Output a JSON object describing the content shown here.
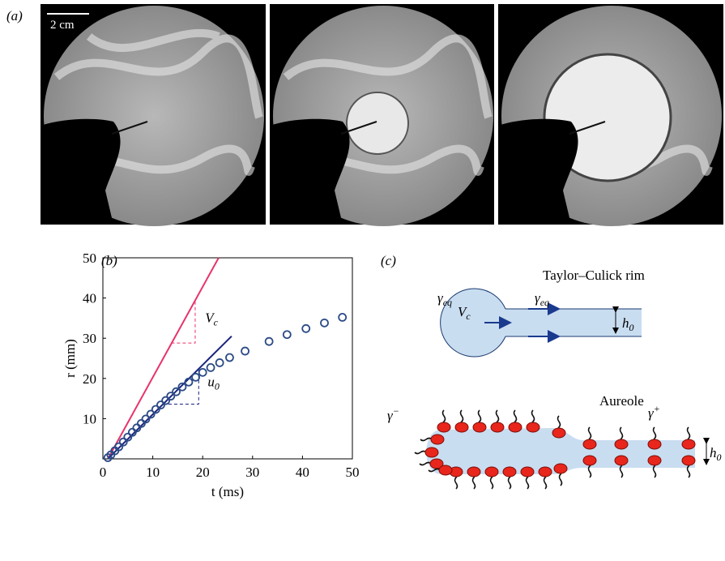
{
  "panel_labels": [
    "(a)",
    "(b)",
    "(c)"
  ],
  "scale_bar": "2 cm",
  "chart_data": {
    "type": "scatter",
    "xlabel": "t (ms)",
    "ylabel": "r (mm)",
    "xlim": [
      0,
      50
    ],
    "ylim": [
      0,
      50
    ],
    "xticks": [
      0,
      10,
      20,
      30,
      40,
      50
    ],
    "yticks": [
      10,
      20,
      30,
      40,
      50
    ],
    "series": [
      {
        "color": "#2b4a86",
        "x": [
          1,
          1.6,
          2.4,
          3.2,
          4.1,
          5,
          5.9,
          6.8,
          7.7,
          8.6,
          9.6,
          10.6,
          11.6,
          12.6,
          13.6,
          14.7,
          15.9,
          17.2,
          18.6,
          20,
          21.6,
          23.4,
          25.4,
          28.5,
          33.3,
          36.9,
          40.7,
          44.4,
          48
        ],
        "values": [
          0.3,
          1,
          2,
          3,
          4.2,
          5.4,
          6.6,
          7.7,
          8.8,
          9.9,
          11.1,
          12.3,
          13.4,
          14.5,
          15.6,
          16.7,
          17.9,
          19.1,
          20.3,
          21.5,
          22.7,
          23.9,
          25.2,
          26.8,
          29.2,
          30.9,
          32.4,
          33.8,
          35.2
        ]
      }
    ],
    "lines": [
      {
        "color": "#e8336b",
        "x": [
          1,
          23.2
        ],
        "y": [
          0,
          50
        ],
        "dash": false
      },
      {
        "color": "#1a237e",
        "x": [
          1,
          25.8
        ],
        "y": [
          0,
          30.5
        ],
        "dash": false
      },
      {
        "color": "#e8336b",
        "x": [
          13.7,
          18.5,
          18.5
        ],
        "y": [
          28.8,
          28.8,
          39.7
        ],
        "dash": true
      },
      {
        "color": "#1a237e",
        "x": [
          12,
          19.2,
          19.2
        ],
        "y": [
          13.6,
          13.6,
          22.6
        ],
        "dash": true
      }
    ],
    "annotations": [
      {
        "symbol": "V",
        "sub": "c",
        "x": 20.5,
        "y": 34
      },
      {
        "symbol": "u",
        "sub": "0",
        "x": 21,
        "y": 18
      }
    ]
  },
  "diagram": {
    "rim_title": "Taylor–Culick rim",
    "gamma_left": {
      "symbol": "γ",
      "sub": "eq"
    },
    "gamma_right": {
      "symbol": "γ",
      "sub": "eq"
    },
    "velocity": {
      "symbol": "V",
      "sub": "c"
    },
    "thickness_top": {
      "symbol": "h",
      "sub": "0"
    },
    "aureole_title": "Aureole",
    "gamma_minus": {
      "symbol": "γ",
      "sup": "−"
    },
    "gamma_plus": {
      "symbol": "γ",
      "sup": "+"
    },
    "thickness_bottom": {
      "symbol": "h",
      "sub": "0"
    }
  }
}
